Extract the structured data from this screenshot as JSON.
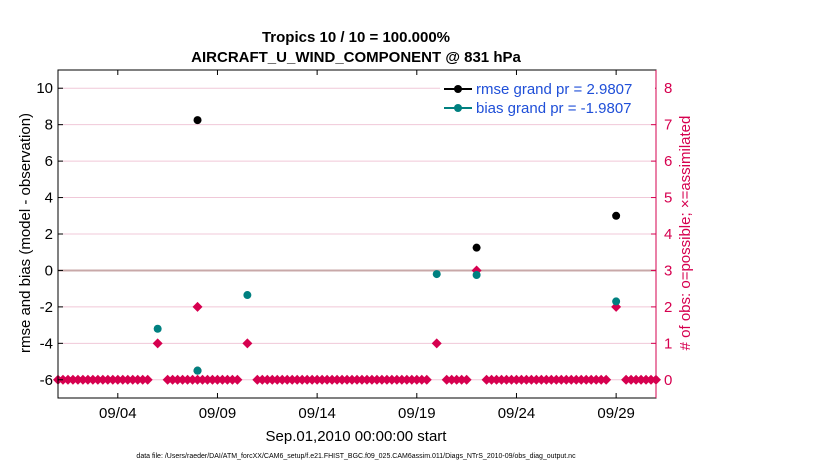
{
  "title_line1": "Tropics 10 / 10 = 100.000%",
  "title_line2": "AIRCRAFT_U_WIND_COMPONENT @ 831 hPa",
  "footer": "data file: /Users/raeder/DAI/ATM_forcXX/CAM6_setup/f.e21.FHIST_BGC.f09_025.CAM6assim.011/Diags_NTrS_2010-09/obs_diag_output.nc",
  "colors": {
    "rmse": "#000000",
    "bias": "#008080",
    "obs": "#d6004f",
    "zero_line": "#c8a8a8",
    "grid": "#f0c8d8",
    "legend_text": "#1f4fd8",
    "right_axis": "#d6004f"
  },
  "chart_data": {
    "type": "scatter",
    "xlabel": "Sep.01,2010 00:00:00 start",
    "ylabel_left": "rmse and bias (model - observation)",
    "ylabel_right": "# of obs: o=possible; ×=assimilated",
    "x_ticks": [
      {
        "day": 4,
        "label": "09/04"
      },
      {
        "day": 9,
        "label": "09/09"
      },
      {
        "day": 14,
        "label": "09/14"
      },
      {
        "day": 19,
        "label": "09/19"
      },
      {
        "day": 24,
        "label": "09/24"
      },
      {
        "day": 29,
        "label": "09/29"
      }
    ],
    "xlim": [
      1,
      31
    ],
    "ylim_left": [
      -7,
      11
    ],
    "y_ticks_left": [
      -6,
      -4,
      -2,
      0,
      2,
      4,
      6,
      8,
      10
    ],
    "ylim_right": [
      -0.5,
      8.5
    ],
    "y_ticks_right": [
      0,
      1,
      2,
      3,
      4,
      5,
      6,
      7,
      8
    ],
    "legend": [
      {
        "label": "rmse grand pr = 2.9807",
        "series": "rmse"
      },
      {
        "label": "bias grand pr = -1.9807",
        "series": "bias"
      }
    ],
    "series": [
      {
        "name": "rmse",
        "points": [
          {
            "x": 8,
            "y": 8.25
          },
          {
            "x": 8,
            "y": -5.5
          },
          {
            "x": 22,
            "y": 1.25
          },
          {
            "x": 29,
            "y": 3.0
          }
        ]
      },
      {
        "name": "bias",
        "points": [
          {
            "x": 6,
            "y": -3.2
          },
          {
            "x": 8,
            "y": -5.5
          },
          {
            "x": 10.5,
            "y": -1.35
          },
          {
            "x": 20,
            "y": -0.2
          },
          {
            "x": 22,
            "y": -0.25
          },
          {
            "x": 29,
            "y": -1.7
          }
        ]
      }
    ],
    "obs_count": {
      "points_nonzero": [
        {
          "x": 6,
          "y": 1
        },
        {
          "x": 8,
          "y": 2
        },
        {
          "x": 10.5,
          "y": 1
        },
        {
          "x": 20,
          "y": 1
        },
        {
          "x": 22,
          "y": 3
        },
        {
          "x": 29,
          "y": 2
        }
      ],
      "zero_runs": [
        [
          1,
          5.5
        ],
        [
          6.5,
          10
        ],
        [
          11,
          19.5
        ],
        [
          20.5,
          21.5
        ],
        [
          22.5,
          28.5
        ],
        [
          29.5,
          31
        ]
      ],
      "zero_step": 0.25
    }
  }
}
